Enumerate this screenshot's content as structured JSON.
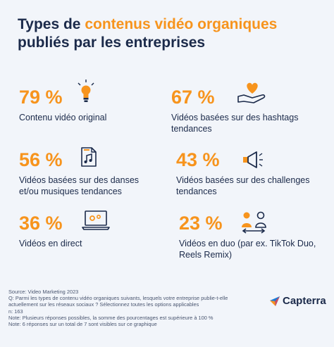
{
  "title": {
    "part1": "Types de ",
    "highlight": "contenus vidéo organiques",
    "part2": "publiés par les entreprises"
  },
  "stats": [
    {
      "value": "79 %",
      "label": "Contenu vidéo original",
      "icon": "lightbulb-icon"
    },
    {
      "value": "67 %",
      "label": "Vidéos basées sur des hashtags tendances",
      "icon": "hand-heart-icon"
    },
    {
      "value": "56 %",
      "label": "Vidéos basées sur des danses et/ou musiques tendances",
      "icon": "music-file-icon"
    },
    {
      "value": "43 %",
      "label": "Vidéos basées sur des challenges tendances",
      "icon": "megaphone-icon"
    },
    {
      "value": "36 %",
      "label": "Vidéos en direct",
      "icon": "laptop-icon"
    },
    {
      "value": "23 %",
      "label": "Vidéos en duo (par ex. TikTok Duo, Reels Remix)",
      "icon": "duo-people-icon"
    }
  ],
  "footer": {
    "source": "Source: Video Marketing 2023",
    "question": "Q: Parmi les types de contenu vidéo organiques suivants, lesquels votre entreprise publie-t-elle actuellement sur les réseaux sociaux ? Sélectionnez toutes les options applicables",
    "n": "n: 163",
    "note1": "Note: Plusieurs réponses possibles, la somme des pourcentages est supérieure à 100 %",
    "note2": "Note: 6 réponses sur un total de 7 sont visibles sur ce graphique"
  },
  "logo": {
    "text": "Capterra"
  },
  "colors": {
    "accent": "#f7941d",
    "navy": "#1b2a4a",
    "background": "#f2f5fa"
  }
}
